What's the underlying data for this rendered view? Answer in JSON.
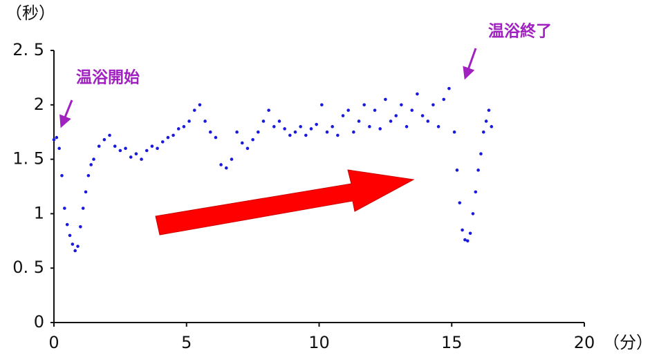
{
  "chart_data": {
    "type": "scatter",
    "y_unit": "（秒）",
    "x_unit": "（分）",
    "annotations": [
      "温浴開始",
      "温浴終了"
    ],
    "color": "#1a1adc",
    "x": [
      0,
      0.1,
      0.2,
      0.3,
      0.4,
      0.5,
      0.6,
      0.7,
      0.8,
      0.9,
      1.0,
      1.1,
      1.2,
      1.3,
      1.4,
      1.5,
      1.7,
      1.9,
      2.1,
      2.3,
      2.5,
      2.7,
      2.9,
      3.1,
      3.3,
      3.5,
      3.7,
      3.9,
      4.1,
      4.3,
      4.5,
      4.7,
      4.9,
      5.1,
      5.3,
      5.5,
      5.7,
      5.9,
      6.1,
      6.3,
      6.5,
      6.7,
      6.9,
      7.1,
      7.3,
      7.5,
      7.7,
      7.9,
      8.1,
      8.3,
      8.5,
      8.7,
      8.9,
      9.1,
      9.3,
      9.5,
      9.7,
      9.9,
      10.1,
      10.3,
      10.5,
      10.7,
      10.9,
      11.1,
      11.3,
      11.5,
      11.7,
      11.9,
      12.1,
      12.3,
      12.5,
      12.7,
      12.9,
      13.1,
      13.3,
      13.5,
      13.7,
      13.9,
      14.1,
      14.3,
      14.5,
      14.7,
      14.9,
      15.1,
      15.2,
      15.3,
      15.4,
      15.5,
      15.6,
      15.7,
      15.8,
      15.9,
      16.0,
      16.1,
      16.2,
      16.3,
      16.4,
      16.5
    ],
    "values": [
      1.68,
      1.7,
      1.6,
      1.35,
      1.05,
      0.9,
      0.8,
      0.72,
      0.66,
      0.7,
      0.88,
      1.05,
      1.2,
      1.35,
      1.45,
      1.5,
      1.62,
      1.68,
      1.72,
      1.62,
      1.58,
      1.6,
      1.52,
      1.55,
      1.5,
      1.58,
      1.62,
      1.6,
      1.66,
      1.7,
      1.72,
      1.78,
      1.8,
      1.85,
      1.95,
      2.0,
      1.85,
      1.75,
      1.7,
      1.45,
      1.42,
      1.5,
      1.75,
      1.65,
      1.6,
      1.68,
      1.75,
      1.85,
      1.95,
      1.8,
      1.85,
      1.78,
      1.72,
      1.75,
      1.8,
      1.72,
      1.78,
      1.82,
      2.0,
      1.75,
      1.8,
      1.72,
      1.9,
      1.95,
      1.75,
      1.85,
      2.0,
      1.8,
      1.95,
      1.78,
      2.05,
      1.85,
      1.9,
      2.0,
      1.8,
      1.95,
      2.1,
      1.9,
      1.85,
      2.0,
      1.8,
      2.05,
      2.15,
      1.75,
      1.4,
      1.1,
      0.85,
      0.76,
      0.75,
      0.82,
      1.0,
      1.2,
      1.4,
      1.55,
      1.75,
      1.85,
      1.95,
      1.8
    ],
    "xlim": [
      0,
      20
    ],
    "xticks": [
      0,
      5,
      10,
      15,
      20
    ],
    "ylim": [
      0,
      2.5
    ],
    "yticks": [
      0,
      {
        "value": 0.5,
        "label": "0. 5"
      },
      1,
      {
        "value": 1.5,
        "label": "1. 5"
      },
      2,
      {
        "value": 2.5,
        "label": "2. 5"
      }
    ]
  }
}
